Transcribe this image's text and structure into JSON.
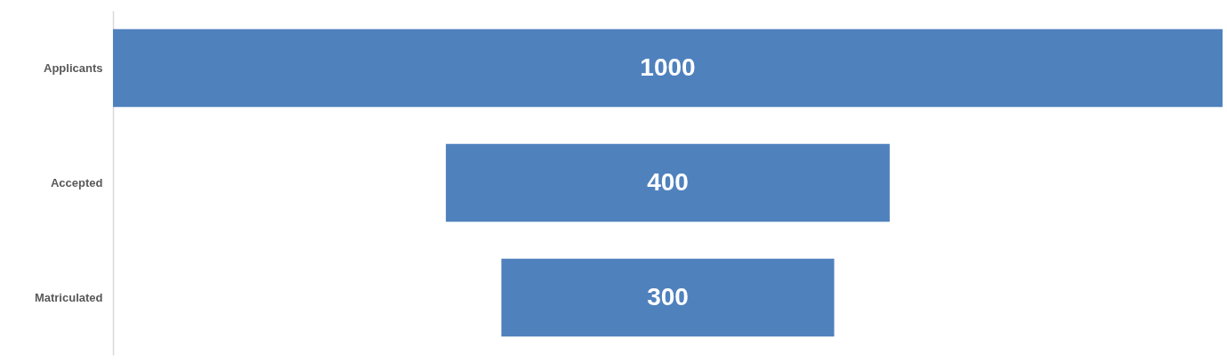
{
  "chart_data": {
    "type": "other",
    "categories": [
      "Applicants",
      "Accepted",
      "Matriculated"
    ],
    "values": [
      1000,
      400,
      300
    ],
    "color": "#4f81bd",
    "data_labels": true
  }
}
